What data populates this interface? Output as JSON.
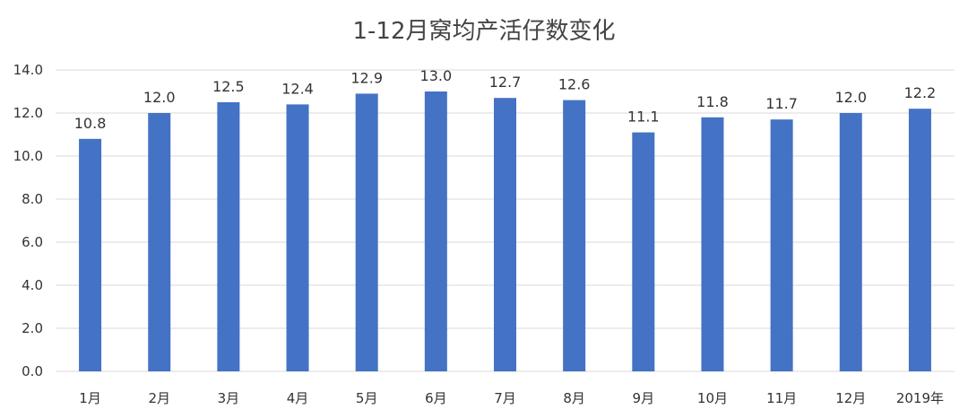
{
  "chart_data": {
    "type": "bar",
    "title": "1-12月窝均产活仔数变化",
    "categories": [
      "1月",
      "2月",
      "3月",
      "4月",
      "5月",
      "6月",
      "7月",
      "8月",
      "9月",
      "10月",
      "11月",
      "12月",
      "2019年"
    ],
    "values": [
      10.8,
      12.0,
      12.5,
      12.4,
      12.9,
      13.0,
      12.7,
      12.6,
      11.1,
      11.8,
      11.7,
      12.0,
      12.2
    ],
    "value_labels": [
      "10.8",
      "12.0",
      "12.5",
      "12.4",
      "12.9",
      "13.0",
      "12.7",
      "12.6",
      "11.1",
      "11.8",
      "11.7",
      "12.0",
      "12.2"
    ],
    "y_ticks": [
      "0.0",
      "2.0",
      "4.0",
      "6.0",
      "8.0",
      "10.0",
      "12.0",
      "14.0"
    ],
    "ylim": [
      0,
      14
    ],
    "grid": true,
    "legend": "none",
    "bar_color": "#4472C4",
    "grid_color": "#d9d9d9"
  }
}
